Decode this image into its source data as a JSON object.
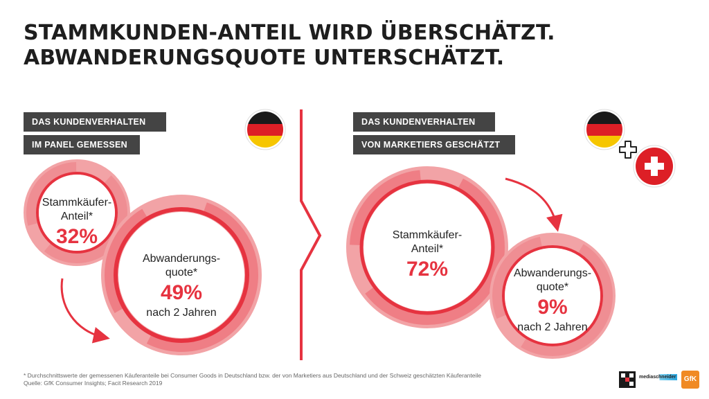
{
  "title": {
    "line1": "STAMMKUNDEN-ANTEIL WIRD ÜBERSCHÄTZT.",
    "line2": "ABWANDERUNGSQUOTE UNTERSCHÄTZT."
  },
  "left": {
    "tag1": "DAS KUNDENVERHALTEN",
    "tag2": "IM PANEL GEMESSEN",
    "flag_icon": "germany-flag-icon",
    "loyal": {
      "label1": "Stammkäufer-",
      "label2": "Anteil*",
      "value": "32%"
    },
    "churn": {
      "label1": "Abwanderungs-",
      "label2": "quote*",
      "value": "49%",
      "sub": "nach 2 Jahren"
    }
  },
  "right": {
    "tag1": "DAS KUNDENVERHALTEN",
    "tag2": "VON MARKETIERS GESCHÄTZT",
    "flag_icons": [
      "germany-flag-icon",
      "plus-icon",
      "switzerland-flag-icon"
    ],
    "loyal": {
      "label1": "Stammkäufer-",
      "label2": "Anteil*",
      "value": "72%"
    },
    "churn": {
      "label1": "Abwanderungs-",
      "label2": "quote*",
      "value": "9%",
      "sub": "nach 2 Jahren"
    }
  },
  "footer": {
    "line1": "* Durchschnittswerte der gemessenen Käuferanteile bei Consumer Goods in Deutschland bzw. der von Marketiers aus Deutschland und der Schweiz geschätzten Käuferanteile",
    "line2": "Quelle: GfK Consumer Insights; Facit Research 2019"
  },
  "logos": {
    "mediaschneider": "mediaschneider",
    "gfk": "GfK"
  },
  "colors": {
    "accent": "#e63340",
    "ring_light": "#f2a3a6",
    "tag_bg": "#444444",
    "title": "#1e1e1e"
  }
}
